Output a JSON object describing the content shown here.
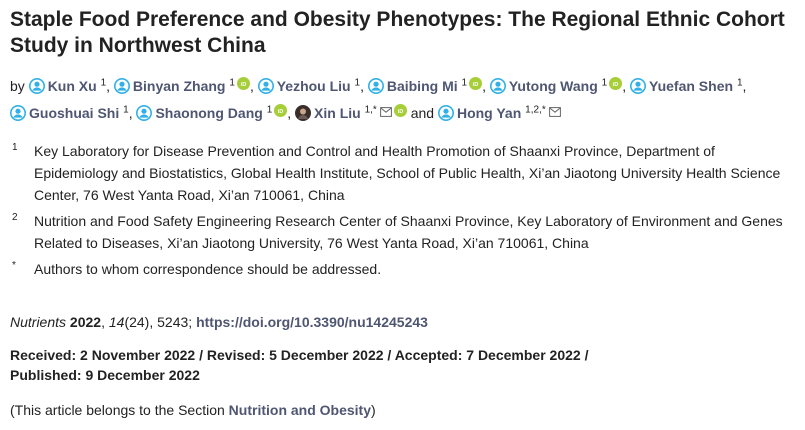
{
  "article": {
    "title": "Staple Food Preference and Obesity Phenotypes: The Regional Ethnic Cohort Study in Northwest China",
    "by_label": "by",
    "authors": [
      {
        "name": "Kun Xu",
        "sup": "1",
        "icon": "person-icon",
        "orcid": false,
        "email": false
      },
      {
        "name": "Binyan Zhang",
        "sup": "1",
        "icon": "person-icon",
        "orcid": true,
        "email": false
      },
      {
        "name": "Yezhou Liu",
        "sup": "1",
        "icon": "person-icon",
        "orcid": false,
        "email": false
      },
      {
        "name": "Baibing Mi",
        "sup": "1",
        "icon": "person-icon",
        "orcid": true,
        "email": false
      },
      {
        "name": "Yutong Wang",
        "sup": "1",
        "icon": "person-icon",
        "orcid": true,
        "email": false
      },
      {
        "name": "Yuefan Shen",
        "sup": "1",
        "icon": "person-icon",
        "orcid": false,
        "email": false
      },
      {
        "name": "Guoshuai Shi",
        "sup": "1",
        "icon": "person-icon",
        "orcid": false,
        "email": false
      },
      {
        "name": "Shaonong Dang",
        "sup": "1",
        "icon": "person-icon",
        "orcid": true,
        "email": false
      },
      {
        "name": "Xin Liu",
        "sup": "1,*",
        "icon": "author-photo",
        "orcid": true,
        "email": true
      },
      {
        "name": "Hong Yan",
        "sup": "1,2,*",
        "icon": "person-icon",
        "orcid": false,
        "email": true
      }
    ],
    "and_label": "and",
    "separator": ",",
    "affiliations": [
      {
        "mark": "1",
        "text": "Key Laboratory for Disease Prevention and Control and Health Promotion of Shaanxi Province, Department of Epidemiology and Biostatistics, Global Health Institute, School of Public Health, Xi’an Jiaotong University Health Science Center, 76 West Yanta Road, Xi’an 710061, China"
      },
      {
        "mark": "2",
        "text": "Nutrition and Food Safety Engineering Research Center of Shaanxi Province, Key Laboratory of Environment and Genes Related to Diseases, Xi’an Jiaotong University, 76 West Yanta Road, Xi’an 710061, China"
      },
      {
        "mark": "*",
        "text": "Authors to whom correspondence should be addressed."
      }
    ],
    "citation": {
      "journal": "Nutrients",
      "year": "2022",
      "volume": "14",
      "issue": "(24)",
      "article_no": ", 5243;",
      "doi": "https://doi.org/10.3390/nu14245243"
    },
    "dates": {
      "line1": "Received: 2 November 2022 / Revised: 5 December 2022 / Accepted: 7 December 2022 /",
      "line2": "Published: 9 December 2022"
    },
    "section": {
      "prefix": "(This article belongs to the Section ",
      "name": "Nutrition and Obesity",
      "suffix": ")"
    }
  },
  "colors": {
    "link": "#4f5671",
    "person_icon": "#31b1e8",
    "orcid": "#a6ce39",
    "text": "#222222"
  }
}
